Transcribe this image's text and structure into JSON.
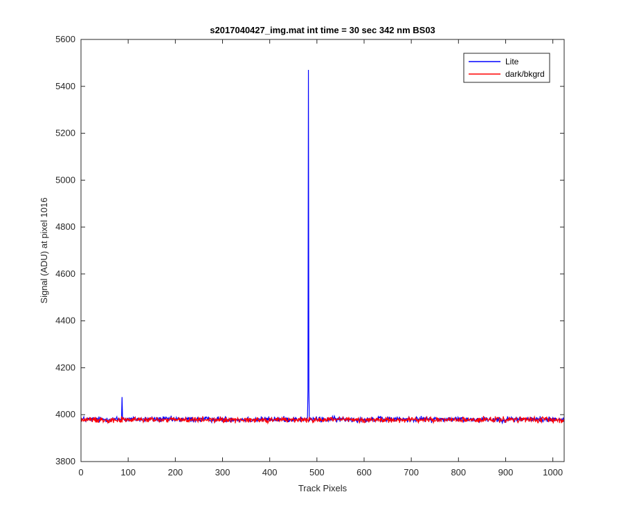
{
  "chart_data": {
    "type": "line",
    "title": "s2017040427_img.mat int time = 30 sec  342 nm BS03",
    "xlabel": "Track Pixels",
    "ylabel": "Signal (ADU) at pixel 1016",
    "xlim": [
      0,
      1024
    ],
    "ylim": [
      3800,
      5600
    ],
    "xticks": [
      "0",
      "100",
      "200",
      "300",
      "400",
      "500",
      "600",
      "700",
      "800",
      "900",
      "1000"
    ],
    "yticks": [
      "3800",
      "4000",
      "4200",
      "4400",
      "4600",
      "4800",
      "5000",
      "5200",
      "5400",
      "5600"
    ],
    "grid": false,
    "legend_position": "top-right",
    "series": [
      {
        "name": "Lite",
        "color": "#0000ff",
        "baseline": 3980,
        "noise_amplitude": 12,
        "peaks": [
          {
            "x": 87,
            "y": 4075
          },
          {
            "x": 482,
            "y": 5470
          }
        ]
      },
      {
        "name": "dark/bkgrd",
        "color": "#ff0000",
        "baseline": 3978,
        "noise_amplitude": 12,
        "peaks": []
      }
    ]
  }
}
